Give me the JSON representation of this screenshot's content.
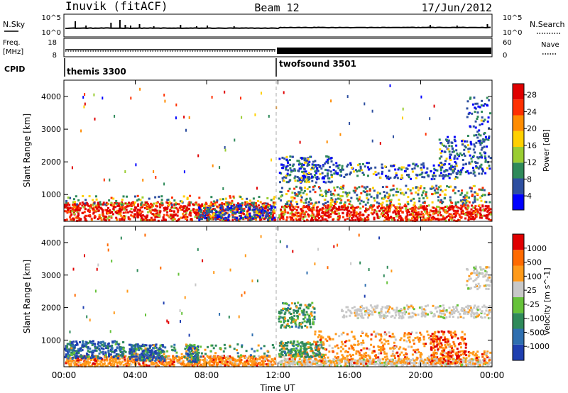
{
  "header": {
    "station": "Inuvik (fitACF)",
    "beam": "Beam 12",
    "date": "17/Jun/2012"
  },
  "status": {
    "nsky_label": "N.Sky",
    "nsearch_label": "N.Search",
    "nsky_ticks": [
      "10^5",
      "10^0"
    ],
    "nsearch_ticks": [
      "10^5",
      "10^0"
    ],
    "freq_label_1": "Freq.",
    "freq_label_2": "[MHz]",
    "freq_ticks": [
      "18",
      "8"
    ],
    "nave_label": "Nave",
    "nave_ticks": [
      "60",
      "0"
    ],
    "cpid_label": "CPID",
    "programs": [
      {
        "name": "themis 3300",
        "start_hour": 0
      },
      {
        "name": "twofsound 3501",
        "start_hour": 12
      }
    ]
  },
  "chart_data": [
    {
      "type": "heatmap",
      "title": "",
      "xlabel": "Time UT",
      "ylabel": "Slant Range [km]",
      "xlim": [
        0,
        24
      ],
      "ylim": [
        180,
        4500
      ],
      "x_ticks": [
        "00:00",
        "04:00",
        "08:00",
        "12:00",
        "16:00",
        "20:00",
        "00:00"
      ],
      "y_ticks": [
        1000,
        2000,
        3000,
        4000
      ],
      "colorbar": {
        "label": "Power [dB]",
        "ticks": [
          "28",
          "24",
          "20",
          "16",
          "12",
          "8",
          "4"
        ],
        "range": [
          0,
          30
        ],
        "colors": [
          "#0000ff",
          "#2e4fa0",
          "#2f8a5a",
          "#9acd32",
          "#ffd000",
          "#ff8c00",
          "#ff3000",
          "#e00000"
        ]
      }
    },
    {
      "type": "heatmap",
      "title": "",
      "xlabel": "Time UT",
      "ylabel": "Slant Range [km]",
      "xlim": [
        0,
        24
      ],
      "ylim": [
        180,
        4500
      ],
      "x_ticks": [
        "00:00",
        "04:00",
        "08:00",
        "12:00",
        "16:00",
        "20:00",
        "00:00"
      ],
      "y_ticks": [
        1000,
        2000,
        3000,
        4000
      ],
      "colorbar": {
        "label": "Velocity [m s^-1]",
        "ticks": [
          "1000",
          "500",
          "100",
          "25",
          "-25",
          "-100",
          "-500",
          "-1000"
        ],
        "colors": [
          "#1f3fb0",
          "#2f6fb0",
          "#2f8a5a",
          "#66c23a",
          "#c8c8c8",
          "#ff9a1a",
          "#ff6a00",
          "#e00000"
        ]
      }
    }
  ]
}
